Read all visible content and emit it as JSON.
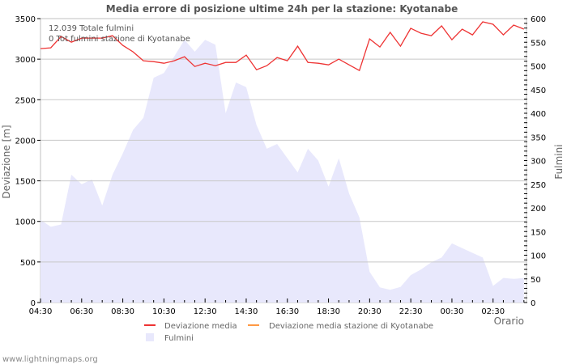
{
  "chart_data": {
    "type": "line",
    "title": "Media errore di posizione ultime 24h per la stazione: Kyotanabe",
    "xlabel": "Orario",
    "ylabel": "Deviazione  [m]",
    "y2label": "Fulmini",
    "ylim": [
      0,
      3500
    ],
    "y2lim": [
      0,
      600
    ],
    "yticks": [
      0,
      500,
      1000,
      1500,
      2000,
      2500,
      3000,
      3500
    ],
    "y2ticks": [
      0,
      50,
      100,
      150,
      200,
      250,
      300,
      350,
      400,
      450,
      500,
      550,
      600
    ],
    "xticks": [
      "04:30",
      "06:30",
      "08:30",
      "10:30",
      "12:30",
      "14:30",
      "16:30",
      "18:30",
      "20:30",
      "22:30",
      "00:30",
      "02:30"
    ],
    "grid": true,
    "legend_position": "bottom",
    "x": [
      "04:30",
      "05:00",
      "05:30",
      "06:00",
      "06:30",
      "07:00",
      "07:30",
      "08:00",
      "08:30",
      "09:00",
      "09:30",
      "10:00",
      "10:30",
      "11:00",
      "11:30",
      "12:00",
      "12:30",
      "13:00",
      "13:30",
      "14:00",
      "14:30",
      "15:00",
      "15:30",
      "16:00",
      "16:30",
      "17:00",
      "17:30",
      "18:00",
      "18:30",
      "19:00",
      "19:30",
      "20:00",
      "20:30",
      "21:00",
      "21:30",
      "22:00",
      "22:30",
      "23:00",
      "23:30",
      "00:00",
      "00:30",
      "01:00",
      "01:30",
      "02:00",
      "02:30",
      "03:00",
      "03:30",
      "04:00"
    ],
    "series": [
      {
        "name": "Deviazione media",
        "axis": "left",
        "kind": "line",
        "color": "#ee3333",
        "values": [
          3130,
          3140,
          3280,
          3210,
          3260,
          3260,
          3260,
          3290,
          3170,
          3090,
          2980,
          2970,
          2950,
          2980,
          3030,
          2910,
          2950,
          2920,
          2960,
          2960,
          3050,
          2870,
          2920,
          3020,
          2980,
          3160,
          2960,
          2950,
          2930,
          3000,
          2930,
          2860,
          3250,
          3150,
          3330,
          3160,
          3380,
          3320,
          3290,
          3410,
          3240,
          3370,
          3300,
          3460,
          3430,
          3300,
          3420,
          3370
        ]
      },
      {
        "name": "Deviazione media stazione di Kyotanabe",
        "axis": "left",
        "kind": "line",
        "color": "#ff9944",
        "values": []
      },
      {
        "name": "Fulmini",
        "axis": "right",
        "kind": "area",
        "color": "#e8e8fc",
        "values": [
          175,
          160,
          165,
          270,
          250,
          260,
          205,
          270,
          315,
          365,
          390,
          475,
          485,
          520,
          555,
          530,
          555,
          545,
          400,
          465,
          455,
          375,
          325,
          335,
          305,
          275,
          325,
          300,
          245,
          305,
          230,
          180,
          65,
          32,
          27,
          33,
          58,
          70,
          85,
          95,
          125,
          115,
          105,
          95,
          35,
          52,
          50,
          52
        ]
      }
    ],
    "annotations": [
      "12.039 Totale fulmini",
      "0 Tot.fulmini stazione di Kyotanabe"
    ]
  },
  "info": {
    "total": "12.039 Totale fulmini",
    "station_total": "0 Tot.fulmini stazione di Kyotanabe"
  },
  "legend": {
    "items": [
      {
        "label": "Deviazione media",
        "color": "#ee3333"
      },
      {
        "label": "Deviazione media stazione di Kyotanabe",
        "color": "#ff9944"
      },
      {
        "label": "Fulmini",
        "color": "#e8e8fc"
      }
    ]
  },
  "footer": "www.lightningmaps.org",
  "colors": {
    "grid": "#c8c8c8",
    "axis": "#c0c0c0",
    "area": "#e8e8fc",
    "line": "#ee3333"
  }
}
